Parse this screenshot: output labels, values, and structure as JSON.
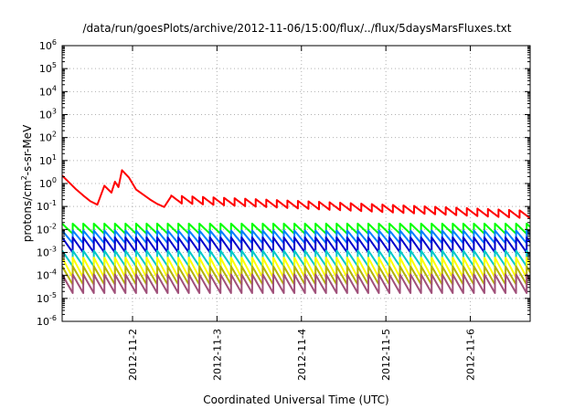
{
  "chart_data": {
    "type": "line",
    "title": "/data/run/goesPlots/archive/2012-11-06/15:00/flux/../flux/5daysMarsFluxes.txt",
    "xlabel": "Coordinated Universal Time (UTC)",
    "ylabel_prefix": "protons/cm",
    "ylabel_sup": "2",
    "ylabel_suffix": "-s-sr-MeV",
    "y_scale": "log",
    "ylim": [
      1e-06,
      1000000.0
    ],
    "xlim": [
      "2012-11-01T04:00",
      "2012-11-06T17:00"
    ],
    "grid": true,
    "legend": "none",
    "y_ticks": [
      {
        "base": "10",
        "exp": "-6",
        "value": 1e-06
      },
      {
        "base": "10",
        "exp": "-5",
        "value": 1e-05
      },
      {
        "base": "10",
        "exp": "-4",
        "value": 0.0001
      },
      {
        "base": "10",
        "exp": "-3",
        "value": 0.001
      },
      {
        "base": "10",
        "exp": "-2",
        "value": 0.01
      },
      {
        "base": "10",
        "exp": "-1",
        "value": 0.1
      },
      {
        "base": "10",
        "exp": "0",
        "value": 1
      },
      {
        "base": "10",
        "exp": "1",
        "value": 10
      },
      {
        "base": "10",
        "exp": "2",
        "value": 100
      },
      {
        "base": "10",
        "exp": "3",
        "value": 1000
      },
      {
        "base": "10",
        "exp": "4",
        "value": 10000
      },
      {
        "base": "10",
        "exp": "5",
        "value": 100000
      },
      {
        "base": "10",
        "exp": "6",
        "value": 1000000
      }
    ],
    "x_ticks": [
      "2012-11-2",
      "2012-11-3",
      "2012-11-4",
      "2012-11-5",
      "2012-11-6"
    ],
    "series": [
      {
        "color": "#ff0000",
        "x": [
          "2012-11-01T04:00",
          "2012-11-01T06:00",
          "2012-11-01T08:00",
          "2012-11-01T10:00",
          "2012-11-01T12:00",
          "2012-11-01T14:00",
          "2012-11-01T16:00",
          "2012-11-01T18:00",
          "2012-11-01T19:00",
          "2012-11-01T20:00",
          "2012-11-01T21:00",
          "2012-11-01T23:00",
          "2012-11-02T01:00",
          "2012-11-02T03:00",
          "2012-11-02T05:00",
          "2012-11-02T07:00",
          "2012-11-02T09:00",
          "2012-11-02T11:00"
        ],
        "values": [
          2.2,
          1.1,
          0.55,
          0.3,
          0.17,
          0.12,
          0.8,
          0.4,
          1.2,
          0.7,
          3.8,
          1.8,
          0.55,
          0.33,
          0.2,
          0.13,
          0.095,
          0.28
        ],
        "tail": {
          "start": "2012-11-02T11:00",
          "end": "2012-11-06T17:00",
          "period_hours": 3,
          "start_peak": 0.3,
          "end_peak": 0.065,
          "end_trough": 0.04,
          "trough_ratio": 0.45
        }
      },
      {
        "color": "#00ff00",
        "periodic": {
          "start": "2012-11-01T04:00",
          "end": "2012-11-06T17:00",
          "period_hours": 3,
          "peak": 0.018,
          "trough": 0.0065
        }
      },
      {
        "color": "#0080ff",
        "periodic": {
          "start": "2012-11-01T04:00",
          "end": "2012-11-06T17:00",
          "period_hours": 3,
          "peak": 0.009,
          "trough": 0.0025
        }
      },
      {
        "color": "#0000cc",
        "periodic": {
          "start": "2012-11-01T04:00",
          "end": "2012-11-06T17:00",
          "period_hours": 3,
          "peak": 0.0045,
          "trough": 0.001
        }
      },
      {
        "color": "#00c8c8",
        "periodic": {
          "start": "2012-11-01T04:00",
          "end": "2012-11-06T17:00",
          "period_hours": 3,
          "peak": 0.0012,
          "trough": 0.00025
        }
      },
      {
        "color": "#ffff00",
        "periodic": {
          "start": "2012-11-01T04:00",
          "end": "2012-11-06T17:00",
          "period_hours": 3,
          "peak": 0.0006,
          "trough": 8e-05
        }
      },
      {
        "color": "#b4b400",
        "periodic": {
          "start": "2012-11-01T04:00",
          "end": "2012-11-06T17:00",
          "period_hours": 3,
          "peak": 0.00025,
          "trough": 4e-05
        }
      },
      {
        "color": "#a0507a",
        "periodic": {
          "start": "2012-11-01T04:00",
          "end": "2012-11-06T17:00",
          "period_hours": 3,
          "peak": 0.00011,
          "trough": 1.7e-05
        }
      }
    ]
  }
}
